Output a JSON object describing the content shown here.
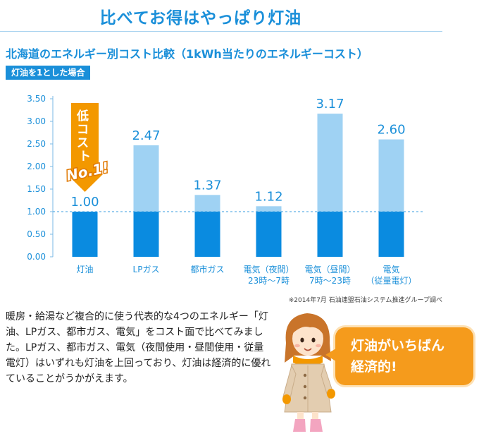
{
  "header": {
    "title": "比べてお得はやっぱり灯油"
  },
  "chart_data": {
    "type": "bar",
    "title": "北海道のエネルギー別コスト比較（1kWh当たりのエネルギーコスト）",
    "subtitle": "灯油を1とした場合",
    "categories": [
      [
        "灯油"
      ],
      [
        "LPガス"
      ],
      [
        "都市ガス"
      ],
      [
        "電気（夜間）",
        "23時〜7時"
      ],
      [
        "電気（昼間）",
        "7時〜23時"
      ],
      [
        "電気",
        "（従量電灯）"
      ]
    ],
    "values": [
      1.0,
      2.47,
      1.37,
      1.12,
      3.17,
      2.6
    ],
    "value_labels": [
      "1.00",
      "2.47",
      "1.37",
      "1.12",
      "3.17",
      "2.60"
    ],
    "yticks": [
      "0.00",
      "0.50",
      "1.00",
      "1.50",
      "2.00",
      "2.50",
      "3.00",
      "3.50"
    ],
    "ylim": [
      0,
      3.5
    ],
    "reference_line": 1.0,
    "colors": {
      "base": "#0a8be0",
      "excess": "#9fd2f3",
      "accent": "#1a8fd9",
      "ref_line": "#3a9ee0"
    },
    "annotation": {
      "text_vertical": "低コスト",
      "badge": "No.1!",
      "color": "#f39800"
    },
    "source": "※2014年7月 石油連盟石油システム推進グループ調べ"
  },
  "description": {
    "text": "暖房・給湯など複合的に使う代表的な4つのエネルギー「灯油、LPガス、都市ガス、電気」をコスト面で比べてみました。LPガス、都市ガス、電気（夜間使用・昼間使用・従量電灯）はいずれも灯油を上回っており、灯油は経済的に優れていることがうかがえます。"
  },
  "speech": {
    "line1": "灯油がいちばん",
    "line2": "経済的!",
    "color": "#f59b1c"
  }
}
